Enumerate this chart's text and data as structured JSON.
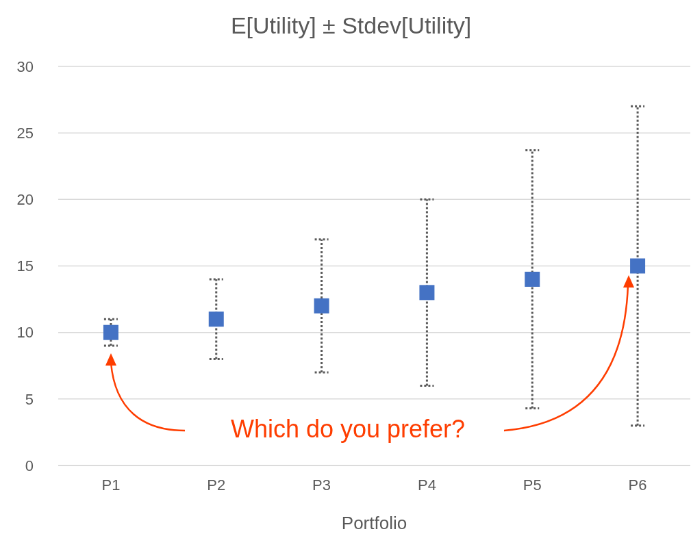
{
  "chart_data": {
    "type": "scatter",
    "title": "E[Utility] ± Stdev[Utility]",
    "xlabel": "Portfolio",
    "categories": [
      "P1",
      "P2",
      "P3",
      "P4",
      "P5",
      "P6"
    ],
    "series": [
      {
        "color": "#4472c4",
        "values": [
          10,
          11,
          12,
          13,
          14,
          15
        ],
        "errors": [
          1,
          3,
          5,
          7,
          9.7,
          12
        ]
      }
    ],
    "ylim": [
      0,
      30
    ],
    "yticks": [
      0,
      5,
      10,
      15,
      20,
      25,
      30
    ],
    "grid": "y",
    "marker": "square",
    "annotations": [
      "Which do you prefer?"
    ]
  }
}
